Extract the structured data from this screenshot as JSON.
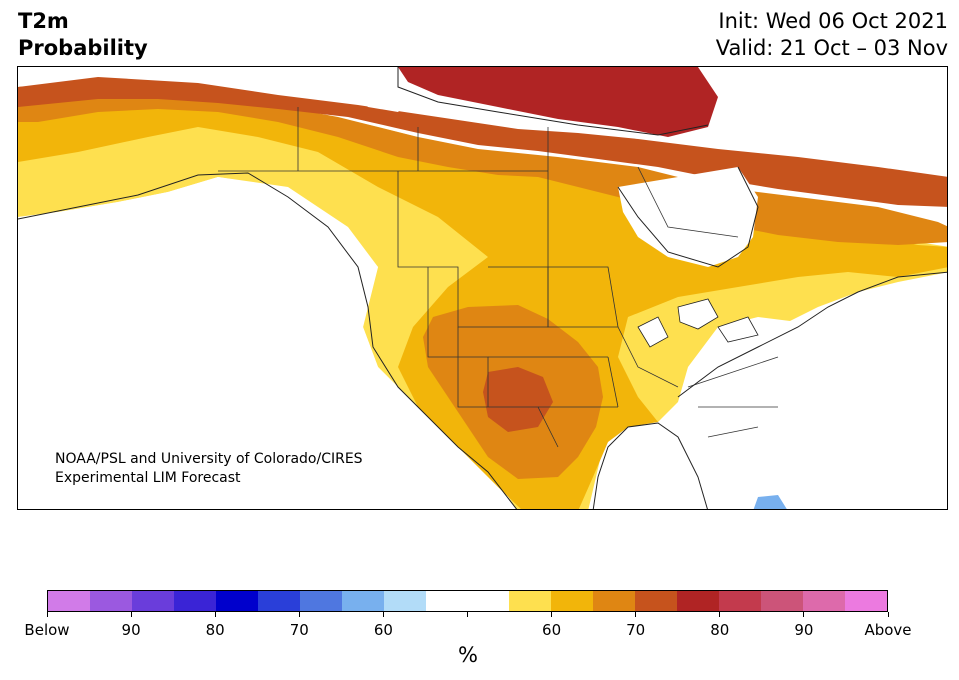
{
  "header": {
    "title_line1": "T2m",
    "title_line2": "Probability",
    "init": "Init: Wed 06 Oct 2021",
    "valid": "Valid: 21 Oct – 03 Nov"
  },
  "credit": {
    "line1": "NOAA/PSL and University of Colorado/CIRES",
    "line2": "Experimental LIM Forecast"
  },
  "colorbar": {
    "unit": "%",
    "colors": [
      "#d17be8",
      "#9b59e0",
      "#6a3ddb",
      "#3a24d6",
      "#0000cc",
      "#2a3fd9",
      "#4f77e0",
      "#78b0ee",
      "#b2dcf8",
      "#ffffff",
      "#ffffff",
      "#fee04f",
      "#f2b50a",
      "#df8613",
      "#c6531d",
      "#b02424",
      "#c33a4d",
      "#cc5479",
      "#dd6aab",
      "#ec7ae0"
    ],
    "tick_labels": [
      "Below",
      "90",
      "80",
      "70",
      "60",
      "",
      "60",
      "70",
      "80",
      "90",
      "Above"
    ]
  },
  "map": {
    "legend_categories": {
      "above_60_70": "#fee04f",
      "above_70_80": "#f2b50a",
      "above_80_90": "#df8613",
      "above_90_100": "#c6531d",
      "above_high": "#b02424",
      "below_60_70": "#78b0ee"
    }
  }
}
